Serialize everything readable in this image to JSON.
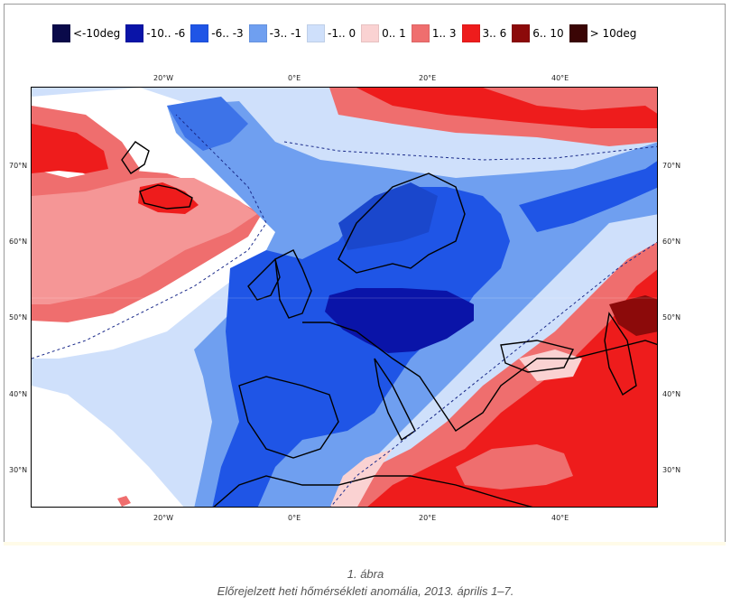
{
  "legend": [
    {
      "label": "<-10deg",
      "color": "#0a0a4a"
    },
    {
      "label": "-10.. -6",
      "color": "#0a14a8"
    },
    {
      "label": "-6.. -3",
      "color": "#1f55e6"
    },
    {
      "label": "-3.. -1",
      "color": "#6f9ff0"
    },
    {
      "label": "-1.. 0",
      "color": "#cfe0fb"
    },
    {
      "label": "0.. 1",
      "color": "#fad2d2"
    },
    {
      "label": "1.. 3",
      "color": "#ef6e6e"
    },
    {
      "label": "3.. 6",
      "color": "#ee1c1c"
    },
    {
      "label": "6.. 10",
      "color": "#8c0a0a"
    },
    {
      "label": "> 10deg",
      "color": "#3a0505"
    }
  ],
  "axes": {
    "top_ticks": [
      "20°W",
      "0°E",
      "20°E",
      "40°E"
    ],
    "bottom_ticks": [
      "20°W",
      "0°E",
      "20°E",
      "40°E"
    ],
    "left_ticks": [
      "70°N",
      "60°N",
      "50°N",
      "40°N",
      "30°N"
    ],
    "right_ticks": [
      "70°N",
      "60°N",
      "50°N",
      "40°N",
      "30°N"
    ]
  },
  "caption": {
    "figure_number": "1. ábra",
    "text": "Előrejelzett heti hőmérsékleti anomália, 2013. április 1–7."
  }
}
